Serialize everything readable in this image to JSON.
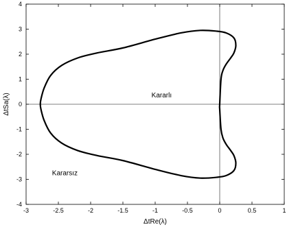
{
  "chart_data": {
    "type": "line",
    "xlabel": "ΔtRe(λ)",
    "ylabel": "ΔtSa(λ)",
    "xlim": [
      -3,
      1
    ],
    "ylim": [
      -4,
      4
    ],
    "xticks": [
      -3,
      -2.5,
      -2,
      -1.5,
      -1,
      -0.5,
      0,
      0.5,
      1
    ],
    "yticks": [
      -4,
      -3,
      -2,
      -1,
      0,
      1,
      2,
      3,
      4
    ],
    "xtick_labels": [
      "-3",
      "-2.5",
      "-2",
      "-1.5",
      "-1",
      "-0.5",
      "0",
      "0.5",
      "1"
    ],
    "ytick_labels": [
      "-4",
      "-3",
      "-2",
      "-1",
      "0",
      "1",
      "2",
      "3",
      "4"
    ],
    "grid": false,
    "reference_lines": {
      "x": 0,
      "y": 0
    },
    "series": [
      {
        "x": [
          0.0,
          0.02,
          0.05,
          0.1,
          0.17,
          0.22,
          0.25,
          0.22,
          0.1,
          -0.05,
          -0.3,
          -0.6,
          -1.0,
          -1.5,
          -1.9,
          -2.2,
          -2.45,
          -2.62,
          -2.72,
          -2.77,
          -2.78,
          -2.77,
          -2.72,
          -2.62,
          -2.45,
          -2.2,
          -1.9,
          -1.5,
          -1.0,
          -0.6,
          -0.3,
          -0.05,
          0.1,
          0.22,
          0.25,
          0.22,
          0.17,
          0.1,
          0.05,
          0.02,
          0.0,
          0.0
        ],
        "y": [
          0.0,
          1.0,
          1.35,
          1.6,
          1.85,
          2.05,
          2.35,
          2.65,
          2.85,
          2.92,
          2.95,
          2.85,
          2.6,
          2.25,
          2.05,
          1.85,
          1.55,
          1.15,
          0.65,
          0.2,
          0.0,
          -0.2,
          -0.65,
          -1.15,
          -1.55,
          -1.85,
          -2.05,
          -2.25,
          -2.6,
          -2.85,
          -2.95,
          -2.92,
          -2.85,
          -2.65,
          -2.35,
          -2.05,
          -1.85,
          -1.6,
          -1.35,
          -1.0,
          -0.2,
          0.0
        ],
        "color": "#000000"
      }
    ],
    "annotations": [
      {
        "text": "Kararlı",
        "x": -0.9,
        "y": 0.35
      },
      {
        "text": "Kararsız",
        "x": -2.4,
        "y": -2.75
      }
    ]
  }
}
